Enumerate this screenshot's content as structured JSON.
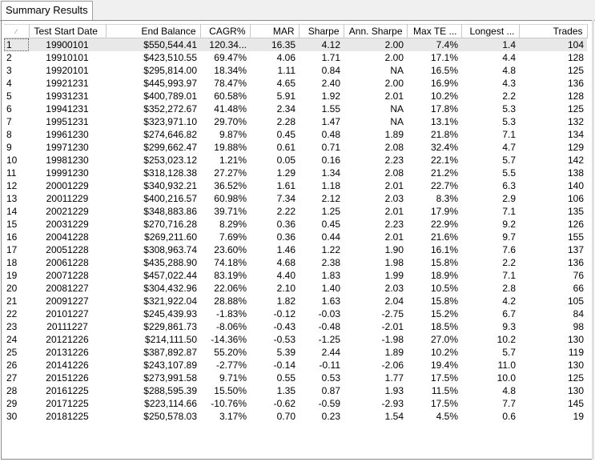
{
  "tab": {
    "label": "Summary Results"
  },
  "columns": [
    {
      "key": "idx",
      "label": "",
      "sort_icon": "sort-indicator-icon"
    },
    {
      "key": "start",
      "label": "Test Start Date"
    },
    {
      "key": "balance",
      "label": "End Balance"
    },
    {
      "key": "cagr",
      "label": "CAGR%"
    },
    {
      "key": "mar",
      "label": "MAR"
    },
    {
      "key": "sharpe",
      "label": "Sharpe"
    },
    {
      "key": "ann_sharpe",
      "label": "Ann. Sharpe"
    },
    {
      "key": "max_te",
      "label": "Max TE ..."
    },
    {
      "key": "longest",
      "label": "Longest ..."
    },
    {
      "key": "trades",
      "label": "Trades"
    }
  ],
  "rows": [
    [
      "1",
      "19900101",
      "$550,544.41",
      "120.34...",
      "16.35",
      "4.12",
      "2.00",
      "7.4%",
      "1.4",
      "104"
    ],
    [
      "2",
      "19910101",
      "$423,510.55",
      "69.47%",
      "4.06",
      "1.71",
      "2.00",
      "17.1%",
      "4.4",
      "128"
    ],
    [
      "3",
      "19920101",
      "$295,814.00",
      "18.34%",
      "1.11",
      "0.84",
      "NA",
      "16.5%",
      "4.8",
      "125"
    ],
    [
      "4",
      "19921231",
      "$445,993.97",
      "78.47%",
      "4.65",
      "2.40",
      "2.00",
      "16.9%",
      "4.3",
      "136"
    ],
    [
      "5",
      "19931231",
      "$400,789.01",
      "60.58%",
      "5.91",
      "1.92",
      "2.01",
      "10.2%",
      "2.2",
      "128"
    ],
    [
      "6",
      "19941231",
      "$352,272.67",
      "41.48%",
      "2.34",
      "1.55",
      "NA",
      "17.8%",
      "5.3",
      "125"
    ],
    [
      "7",
      "19951231",
      "$323,971.10",
      "29.70%",
      "2.28",
      "1.47",
      "NA",
      "13.1%",
      "5.3",
      "132"
    ],
    [
      "8",
      "19961230",
      "$274,646.82",
      "9.87%",
      "0.45",
      "0.48",
      "1.89",
      "21.8%",
      "7.1",
      "134"
    ],
    [
      "9",
      "19971230",
      "$299,662.47",
      "19.88%",
      "0.61",
      "0.71",
      "2.08",
      "32.4%",
      "4.7",
      "129"
    ],
    [
      "10",
      "19981230",
      "$253,023.12",
      "1.21%",
      "0.05",
      "0.16",
      "2.23",
      "22.1%",
      "5.7",
      "142"
    ],
    [
      "11",
      "19991230",
      "$318,128.38",
      "27.27%",
      "1.29",
      "1.34",
      "2.08",
      "21.2%",
      "5.5",
      "138"
    ],
    [
      "12",
      "20001229",
      "$340,932.21",
      "36.52%",
      "1.61",
      "1.18",
      "2.01",
      "22.7%",
      "6.3",
      "140"
    ],
    [
      "13",
      "20011229",
      "$400,216.57",
      "60.98%",
      "7.34",
      "2.12",
      "2.03",
      "8.3%",
      "2.9",
      "106"
    ],
    [
      "14",
      "20021229",
      "$348,883.86",
      "39.71%",
      "2.22",
      "1.25",
      "2.01",
      "17.9%",
      "7.1",
      "135"
    ],
    [
      "15",
      "20031229",
      "$270,716.28",
      "8.29%",
      "0.36",
      "0.45",
      "2.23",
      "22.9%",
      "9.2",
      "126"
    ],
    [
      "16",
      "20041228",
      "$269,211.60",
      "7.69%",
      "0.36",
      "0.44",
      "2.01",
      "21.6%",
      "9.7",
      "155"
    ],
    [
      "17",
      "20051228",
      "$308,963.74",
      "23.60%",
      "1.46",
      "1.22",
      "1.90",
      "16.1%",
      "7.6",
      "137"
    ],
    [
      "18",
      "20061228",
      "$435,288.90",
      "74.18%",
      "4.68",
      "2.38",
      "1.98",
      "15.8%",
      "2.2",
      "136"
    ],
    [
      "19",
      "20071228",
      "$457,022.44",
      "83.19%",
      "4.40",
      "1.83",
      "1.99",
      "18.9%",
      "7.1",
      "76"
    ],
    [
      "20",
      "20081227",
      "$304,432.96",
      "22.06%",
      "2.10",
      "1.40",
      "2.03",
      "10.5%",
      "2.8",
      "66"
    ],
    [
      "21",
      "20091227",
      "$321,922.04",
      "28.88%",
      "1.82",
      "1.63",
      "2.04",
      "15.8%",
      "4.2",
      "105"
    ],
    [
      "22",
      "20101227",
      "$245,439.93",
      "-1.83%",
      "-0.12",
      "-0.03",
      "-2.75",
      "15.2%",
      "6.7",
      "84"
    ],
    [
      "23",
      "20111227",
      "$229,861.73",
      "-8.06%",
      "-0.43",
      "-0.48",
      "-2.01",
      "18.5%",
      "9.3",
      "98"
    ],
    [
      "24",
      "20121226",
      "$214,111.50",
      "-14.36%",
      "-0.53",
      "-1.25",
      "-1.98",
      "27.0%",
      "10.2",
      "130"
    ],
    [
      "25",
      "20131226",
      "$387,892.87",
      "55.20%",
      "5.39",
      "2.44",
      "1.89",
      "10.2%",
      "5.7",
      "119"
    ],
    [
      "26",
      "20141226",
      "$243,107.89",
      "-2.77%",
      "-0.14",
      "-0.11",
      "-2.06",
      "19.4%",
      "11.0",
      "130"
    ],
    [
      "27",
      "20151226",
      "$273,991.58",
      "9.71%",
      "0.55",
      "0.53",
      "1.77",
      "17.5%",
      "10.0",
      "125"
    ],
    [
      "28",
      "20161225",
      "$288,595.39",
      "15.50%",
      "1.35",
      "0.87",
      "1.93",
      "11.5%",
      "4.8",
      "130"
    ],
    [
      "29",
      "20171225",
      "$223,114.66",
      "-10.76%",
      "-0.62",
      "-0.59",
      "-2.93",
      "17.5%",
      "7.7",
      "145"
    ],
    [
      "30",
      "20181225",
      "$250,578.03",
      "3.17%",
      "0.70",
      "0.23",
      "1.54",
      "4.5%",
      "0.6",
      "19"
    ]
  ]
}
